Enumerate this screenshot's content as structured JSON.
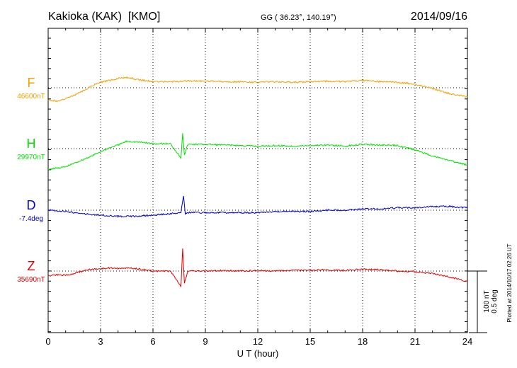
{
  "header": {
    "station": "Kakioka (KAK)  [KMO]",
    "coords": "GG ( 36.23°, 140.19°)",
    "date": "2014/09/16"
  },
  "plotted_note": "Plotted at 2014/10/17 02:26 UT",
  "scale_bar": {
    "nt": "100 nT",
    "deg": "0.5 deg"
  },
  "colors": {
    "F": "#f0a000",
    "H": "#00e000",
    "D": "#0000d0",
    "Z": "#e00000",
    "axis": "#000000",
    "grid": "#000000"
  },
  "chart_data": {
    "type": "line",
    "xlabel": "U T (hour)",
    "xlim": [
      0,
      24
    ],
    "xticks": [
      "0",
      "3",
      "6",
      "9",
      "12",
      "15",
      "18",
      "21",
      "24"
    ],
    "series": [
      {
        "name": "F",
        "baseline": "46600nT",
        "unit": "nT",
        "baseline_value": 46600,
        "x": [
          0,
          0.5,
          1,
          1.5,
          2,
          2.5,
          3,
          3.5,
          4,
          4.5,
          5,
          5.5,
          6,
          7,
          8,
          9,
          10,
          11,
          12,
          13,
          14,
          15,
          16,
          17,
          18,
          19,
          20,
          21,
          22,
          23,
          24
        ],
        "values": [
          46580,
          46578,
          46582,
          46588,
          46595,
          46603,
          46609,
          46612,
          46615,
          46617,
          46614,
          46612,
          46610,
          46610,
          46611,
          46611,
          46610,
          46610,
          46609,
          46610,
          46609,
          46610,
          46611,
          46610,
          46612,
          46610,
          46609,
          46606,
          46599,
          46590,
          46585
        ]
      },
      {
        "name": "H",
        "baseline": "29970nT",
        "unit": "nT",
        "baseline_value": 29970,
        "x": [
          0,
          0.5,
          1,
          1.5,
          2,
          2.5,
          3,
          3.5,
          4,
          4.5,
          5,
          5.5,
          6,
          7,
          7.6,
          7.7,
          7.8,
          8,
          9,
          10,
          11,
          12,
          13,
          14,
          15,
          16,
          17,
          18,
          19,
          20,
          21,
          22,
          23,
          24
        ],
        "values": [
          29936,
          29938,
          29940,
          29946,
          29952,
          29958,
          29965,
          29971,
          29976,
          29982,
          29981,
          29980,
          29978,
          29978,
          29955,
          29996,
          29960,
          29977,
          29977,
          29976,
          29975,
          29974,
          29975,
          29974,
          29975,
          29976,
          29974,
          29977,
          29976,
          29975,
          29968,
          29958,
          29950,
          29943
        ]
      },
      {
        "name": "D",
        "baseline": "-7.4deg",
        "unit": "deg",
        "baseline_value": -7.4,
        "x": [
          0,
          1,
          2,
          3,
          4,
          5,
          6,
          7,
          7.6,
          7.75,
          7.85,
          8,
          9,
          10,
          11,
          12,
          13,
          14,
          15,
          16,
          17,
          18,
          19,
          20,
          21,
          22,
          23,
          24
        ],
        "values": [
          -7.4,
          -7.41,
          -7.43,
          -7.44,
          -7.45,
          -7.45,
          -7.44,
          -7.43,
          -7.42,
          -7.28,
          -7.43,
          -7.42,
          -7.42,
          -7.42,
          -7.42,
          -7.42,
          -7.41,
          -7.41,
          -7.41,
          -7.4,
          -7.4,
          -7.39,
          -7.39,
          -7.38,
          -7.38,
          -7.37,
          -7.37,
          -7.38
        ]
      },
      {
        "name": "Z",
        "baseline": "35690nT",
        "unit": "nT",
        "baseline_value": 35690,
        "x": [
          0,
          0.5,
          1,
          1.5,
          2,
          2.5,
          3,
          3.5,
          4,
          4.5,
          5,
          5.5,
          6,
          7,
          7.6,
          7.7,
          7.8,
          8,
          9,
          10,
          11,
          12,
          13,
          14,
          15,
          16,
          17,
          18,
          19,
          20,
          21,
          22,
          23,
          24
        ],
        "values": [
          35682,
          35684,
          35683,
          35686,
          35690,
          35693,
          35694,
          35695,
          35694,
          35695,
          35694,
          35692,
          35690,
          35690,
          35665,
          35726,
          35670,
          35690,
          35690,
          35691,
          35690,
          35691,
          35690,
          35691,
          35691,
          35692,
          35691,
          35693,
          35692,
          35690,
          35689,
          35686,
          35680,
          35673
        ]
      }
    ]
  }
}
